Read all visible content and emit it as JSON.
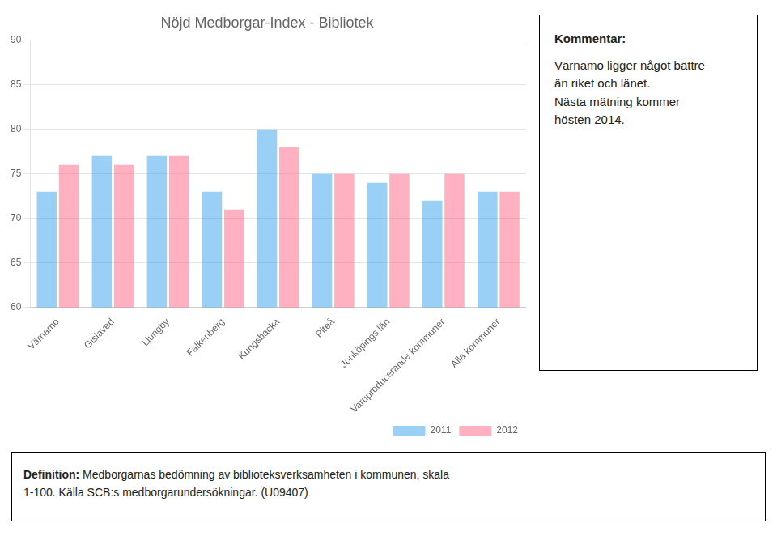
{
  "chart_data": {
    "type": "bar",
    "title": "Nöjd Medborgar-Index - Bibliotek",
    "categories": [
      "Värnamo",
      "Gislaved",
      "Ljungby",
      "Falkenberg",
      "Kungsbacka",
      "Piteå",
      "Jönköpings län",
      "Varuproducerande kommuner",
      "Alla kommuner"
    ],
    "series": [
      {
        "name": "2011",
        "values": [
          73,
          77,
          77,
          73,
          80,
          75,
          74,
          72,
          73
        ]
      },
      {
        "name": "2012",
        "values": [
          76,
          76,
          77,
          71,
          78,
          75,
          75,
          75,
          73
        ]
      }
    ],
    "ylim": [
      60,
      90
    ],
    "yticks": [
      60,
      65,
      70,
      75,
      80,
      85,
      90
    ],
    "grid": true,
    "legend": "lower right",
    "annotations": [
      [
        "Kommentar:",
        "Värnamo ligger något bättre",
        "än riket och länet.",
        "Nästa mätning kommer",
        "hösten 2014."
      ],
      [
        "Definition:",
        "Medborgarnas bedömning av biblioteksverksamheten i kommunen, skala",
        "1-100. Källa SCB:s medborgarundersökningar. (U09407)"
      ]
    ]
  }
}
